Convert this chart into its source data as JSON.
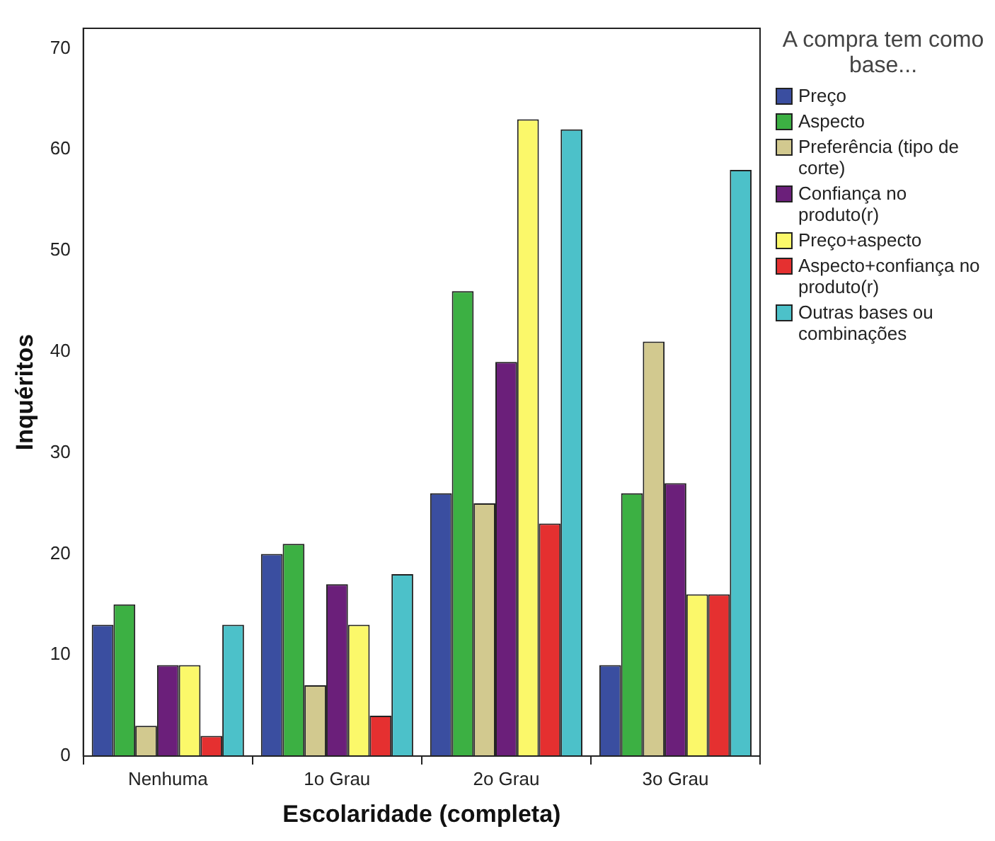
{
  "chart_data": {
    "type": "bar",
    "xlabel": "Escolaridade (completa)",
    "ylabel": "Inquéritos",
    "legend_title": "A compra tem como base...",
    "categories": [
      "Nenhuma",
      "1o Grau",
      "2o Grau",
      "3o Grau"
    ],
    "series": [
      {
        "name": "Preço",
        "color": "#3a4ea0",
        "values": [
          13,
          20,
          26,
          9
        ]
      },
      {
        "name": "Aspecto",
        "color": "#3cb043",
        "values": [
          15,
          21,
          46,
          26
        ]
      },
      {
        "name": "Preferência (tipo de corte)",
        "color": "#d2c98f",
        "values": [
          3,
          7,
          25,
          41
        ]
      },
      {
        "name": "Confiança no produto(r)",
        "color": "#6b1f7a",
        "values": [
          9,
          17,
          39,
          27
        ]
      },
      {
        "name": "Preço+aspecto",
        "color": "#fbf86a",
        "values": [
          9,
          13,
          63,
          16
        ]
      },
      {
        "name": "Aspecto+confiança no produto(r)",
        "color": "#e53030",
        "values": [
          2,
          4,
          23,
          16
        ]
      },
      {
        "name": "Outras bases ou combinações",
        "color": "#4cc1c9",
        "values": [
          13,
          18,
          62,
          58
        ]
      }
    ],
    "ylim": [
      0,
      72
    ],
    "yticks": [
      0,
      10,
      20,
      30,
      40,
      50,
      60,
      70
    ],
    "grid": false,
    "legend": "right"
  }
}
